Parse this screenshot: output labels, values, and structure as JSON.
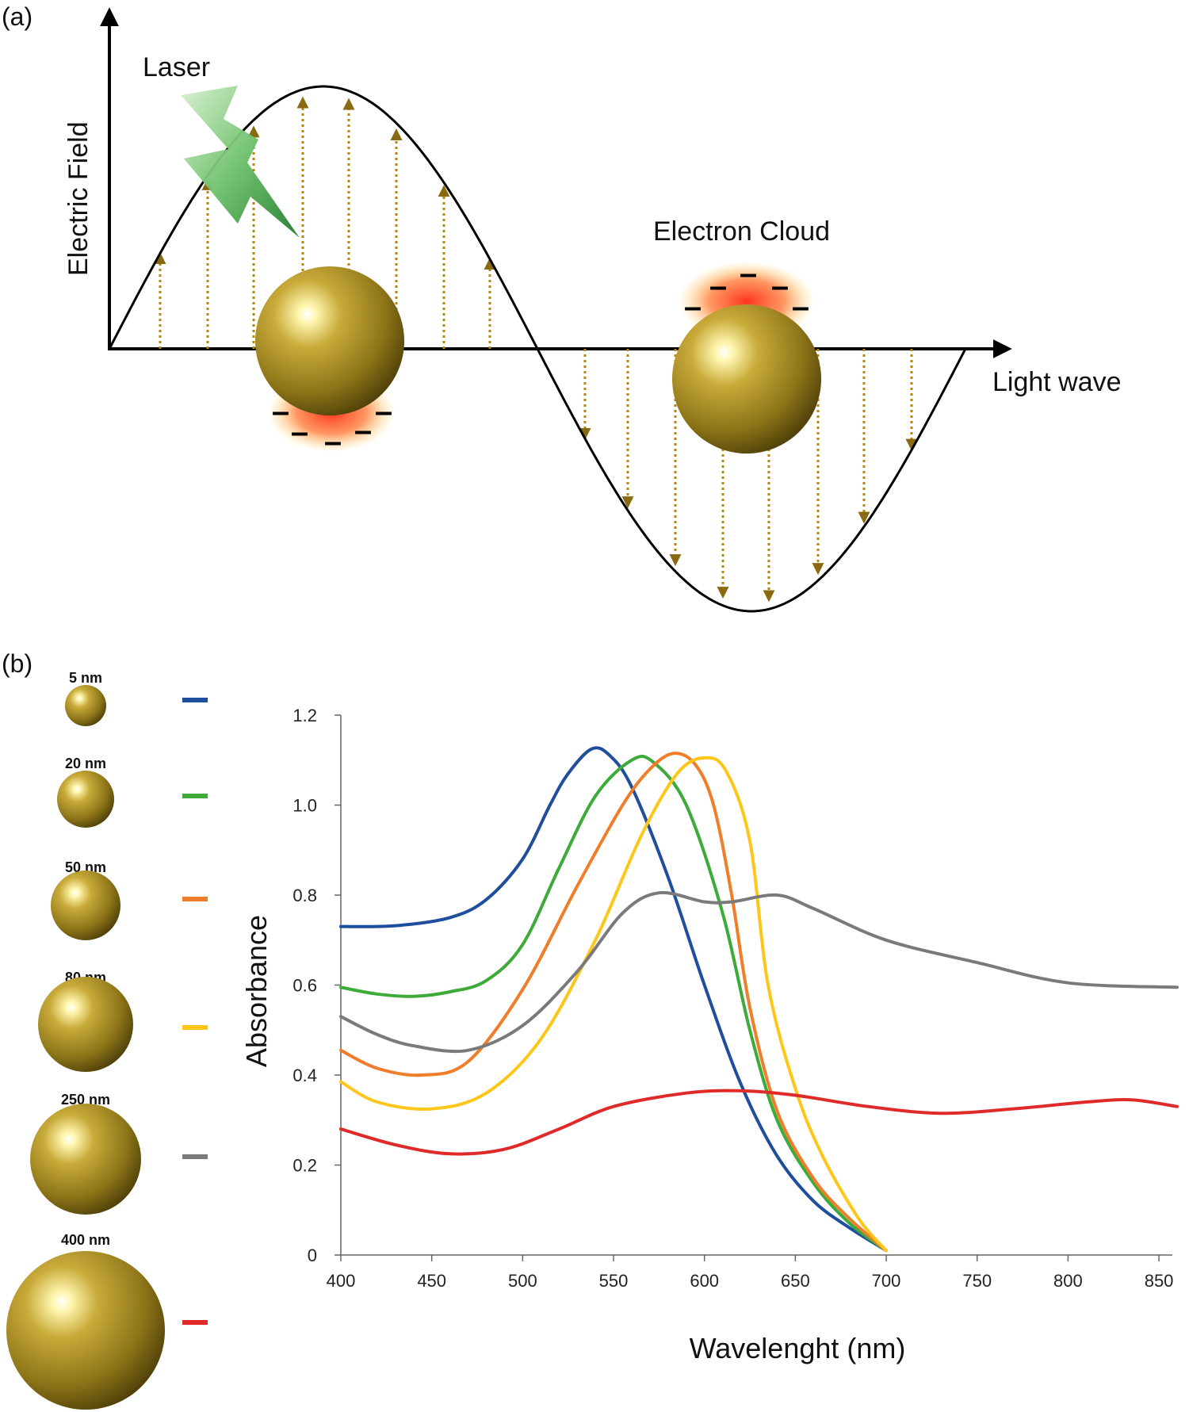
{
  "panel_a": {
    "label": "(a)",
    "y_axis_label": "Electric Field",
    "x_axis_label": "Light wave",
    "laser_label": "Laser",
    "electron_cloud_label": "Electron Cloud",
    "charge_symbol": "–"
  },
  "panel_b": {
    "label": "(b)"
  },
  "colors": {
    "gold_light": "#fff6b0",
    "gold_mid": "#b49a2c",
    "gold_dark": "#5a4a0c",
    "cloud": "#ff3a1a",
    "arrow": "#b8860b",
    "laser_green": "#2e8b3a"
  },
  "chart_data": {
    "type": "line",
    "title": "",
    "xlabel": "Wavelenght (nm)",
    "ylabel": "Absorbance",
    "xlim": [
      400,
      860
    ],
    "ylim": [
      0,
      1.2
    ],
    "x_ticks": [
      "400",
      "450",
      "500",
      "550",
      "600",
      "650",
      "700",
      "750",
      "800",
      "850"
    ],
    "y_ticks": [
      "0",
      "0.2",
      "0.4",
      "0.6",
      "0.8",
      "1.0",
      "1.2"
    ],
    "legend_position": "left",
    "series": [
      {
        "name": "5 nm",
        "color": "#1f4e9c",
        "points": [
          [
            400,
            0.73
          ],
          [
            430,
            0.732
          ],
          [
            460,
            0.75
          ],
          [
            480,
            0.79
          ],
          [
            500,
            0.88
          ],
          [
            515,
            1.0
          ],
          [
            525,
            1.07
          ],
          [
            538,
            1.125
          ],
          [
            548,
            1.11
          ],
          [
            560,
            1.04
          ],
          [
            580,
            0.84
          ],
          [
            600,
            0.6
          ],
          [
            620,
            0.38
          ],
          [
            640,
            0.22
          ],
          [
            660,
            0.12
          ],
          [
            680,
            0.06
          ],
          [
            700,
            0.01
          ]
        ]
      },
      {
        "name": "20 nm",
        "color": "#3daa3a",
        "points": [
          [
            400,
            0.595
          ],
          [
            420,
            0.58
          ],
          [
            440,
            0.575
          ],
          [
            460,
            0.585
          ],
          [
            480,
            0.61
          ],
          [
            500,
            0.69
          ],
          [
            520,
            0.86
          ],
          [
            540,
            1.02
          ],
          [
            560,
            1.1
          ],
          [
            572,
            1.095
          ],
          [
            590,
            1.0
          ],
          [
            610,
            0.76
          ],
          [
            625,
            0.5
          ],
          [
            640,
            0.3
          ],
          [
            660,
            0.16
          ],
          [
            680,
            0.07
          ],
          [
            700,
            0.01
          ]
        ]
      },
      {
        "name": "50 nm",
        "color": "#f07d2a",
        "points": [
          [
            400,
            0.455
          ],
          [
            420,
            0.415
          ],
          [
            445,
            0.4
          ],
          [
            470,
            0.43
          ],
          [
            500,
            0.59
          ],
          [
            530,
            0.82
          ],
          [
            555,
            1.0
          ],
          [
            570,
            1.08
          ],
          [
            583,
            1.115
          ],
          [
            595,
            1.09
          ],
          [
            605,
            1.0
          ],
          [
            615,
            0.8
          ],
          [
            625,
            0.55
          ],
          [
            640,
            0.32
          ],
          [
            660,
            0.17
          ],
          [
            680,
            0.08
          ],
          [
            700,
            0.01
          ]
        ]
      },
      {
        "name": "80 nm",
        "color": "#ffc61a",
        "points": [
          [
            400,
            0.385
          ],
          [
            420,
            0.34
          ],
          [
            450,
            0.325
          ],
          [
            480,
            0.36
          ],
          [
            510,
            0.48
          ],
          [
            540,
            0.7
          ],
          [
            565,
            0.93
          ],
          [
            585,
            1.07
          ],
          [
            600,
            1.105
          ],
          [
            612,
            1.075
          ],
          [
            625,
            0.92
          ],
          [
            635,
            0.6
          ],
          [
            650,
            0.37
          ],
          [
            665,
            0.22
          ],
          [
            685,
            0.08
          ],
          [
            700,
            0.01
          ]
        ]
      },
      {
        "name": "250 nm",
        "color": "#7a7a7a",
        "points": [
          [
            400,
            0.53
          ],
          [
            420,
            0.49
          ],
          [
            440,
            0.465
          ],
          [
            470,
            0.455
          ],
          [
            500,
            0.51
          ],
          [
            530,
            0.63
          ],
          [
            555,
            0.76
          ],
          [
            575,
            0.805
          ],
          [
            600,
            0.785
          ],
          [
            615,
            0.785
          ],
          [
            640,
            0.8
          ],
          [
            660,
            0.77
          ],
          [
            700,
            0.7
          ],
          [
            750,
            0.65
          ],
          [
            800,
            0.605
          ],
          [
            860,
            0.595
          ]
        ]
      },
      {
        "name": "400 nm",
        "color": "#e02a2a",
        "points": [
          [
            400,
            0.28
          ],
          [
            430,
            0.245
          ],
          [
            460,
            0.225
          ],
          [
            490,
            0.235
          ],
          [
            520,
            0.28
          ],
          [
            550,
            0.33
          ],
          [
            590,
            0.36
          ],
          [
            620,
            0.365
          ],
          [
            650,
            0.355
          ],
          [
            690,
            0.33
          ],
          [
            730,
            0.315
          ],
          [
            770,
            0.325
          ],
          [
            810,
            0.34
          ],
          [
            835,
            0.345
          ],
          [
            860,
            0.33
          ]
        ]
      }
    ]
  }
}
